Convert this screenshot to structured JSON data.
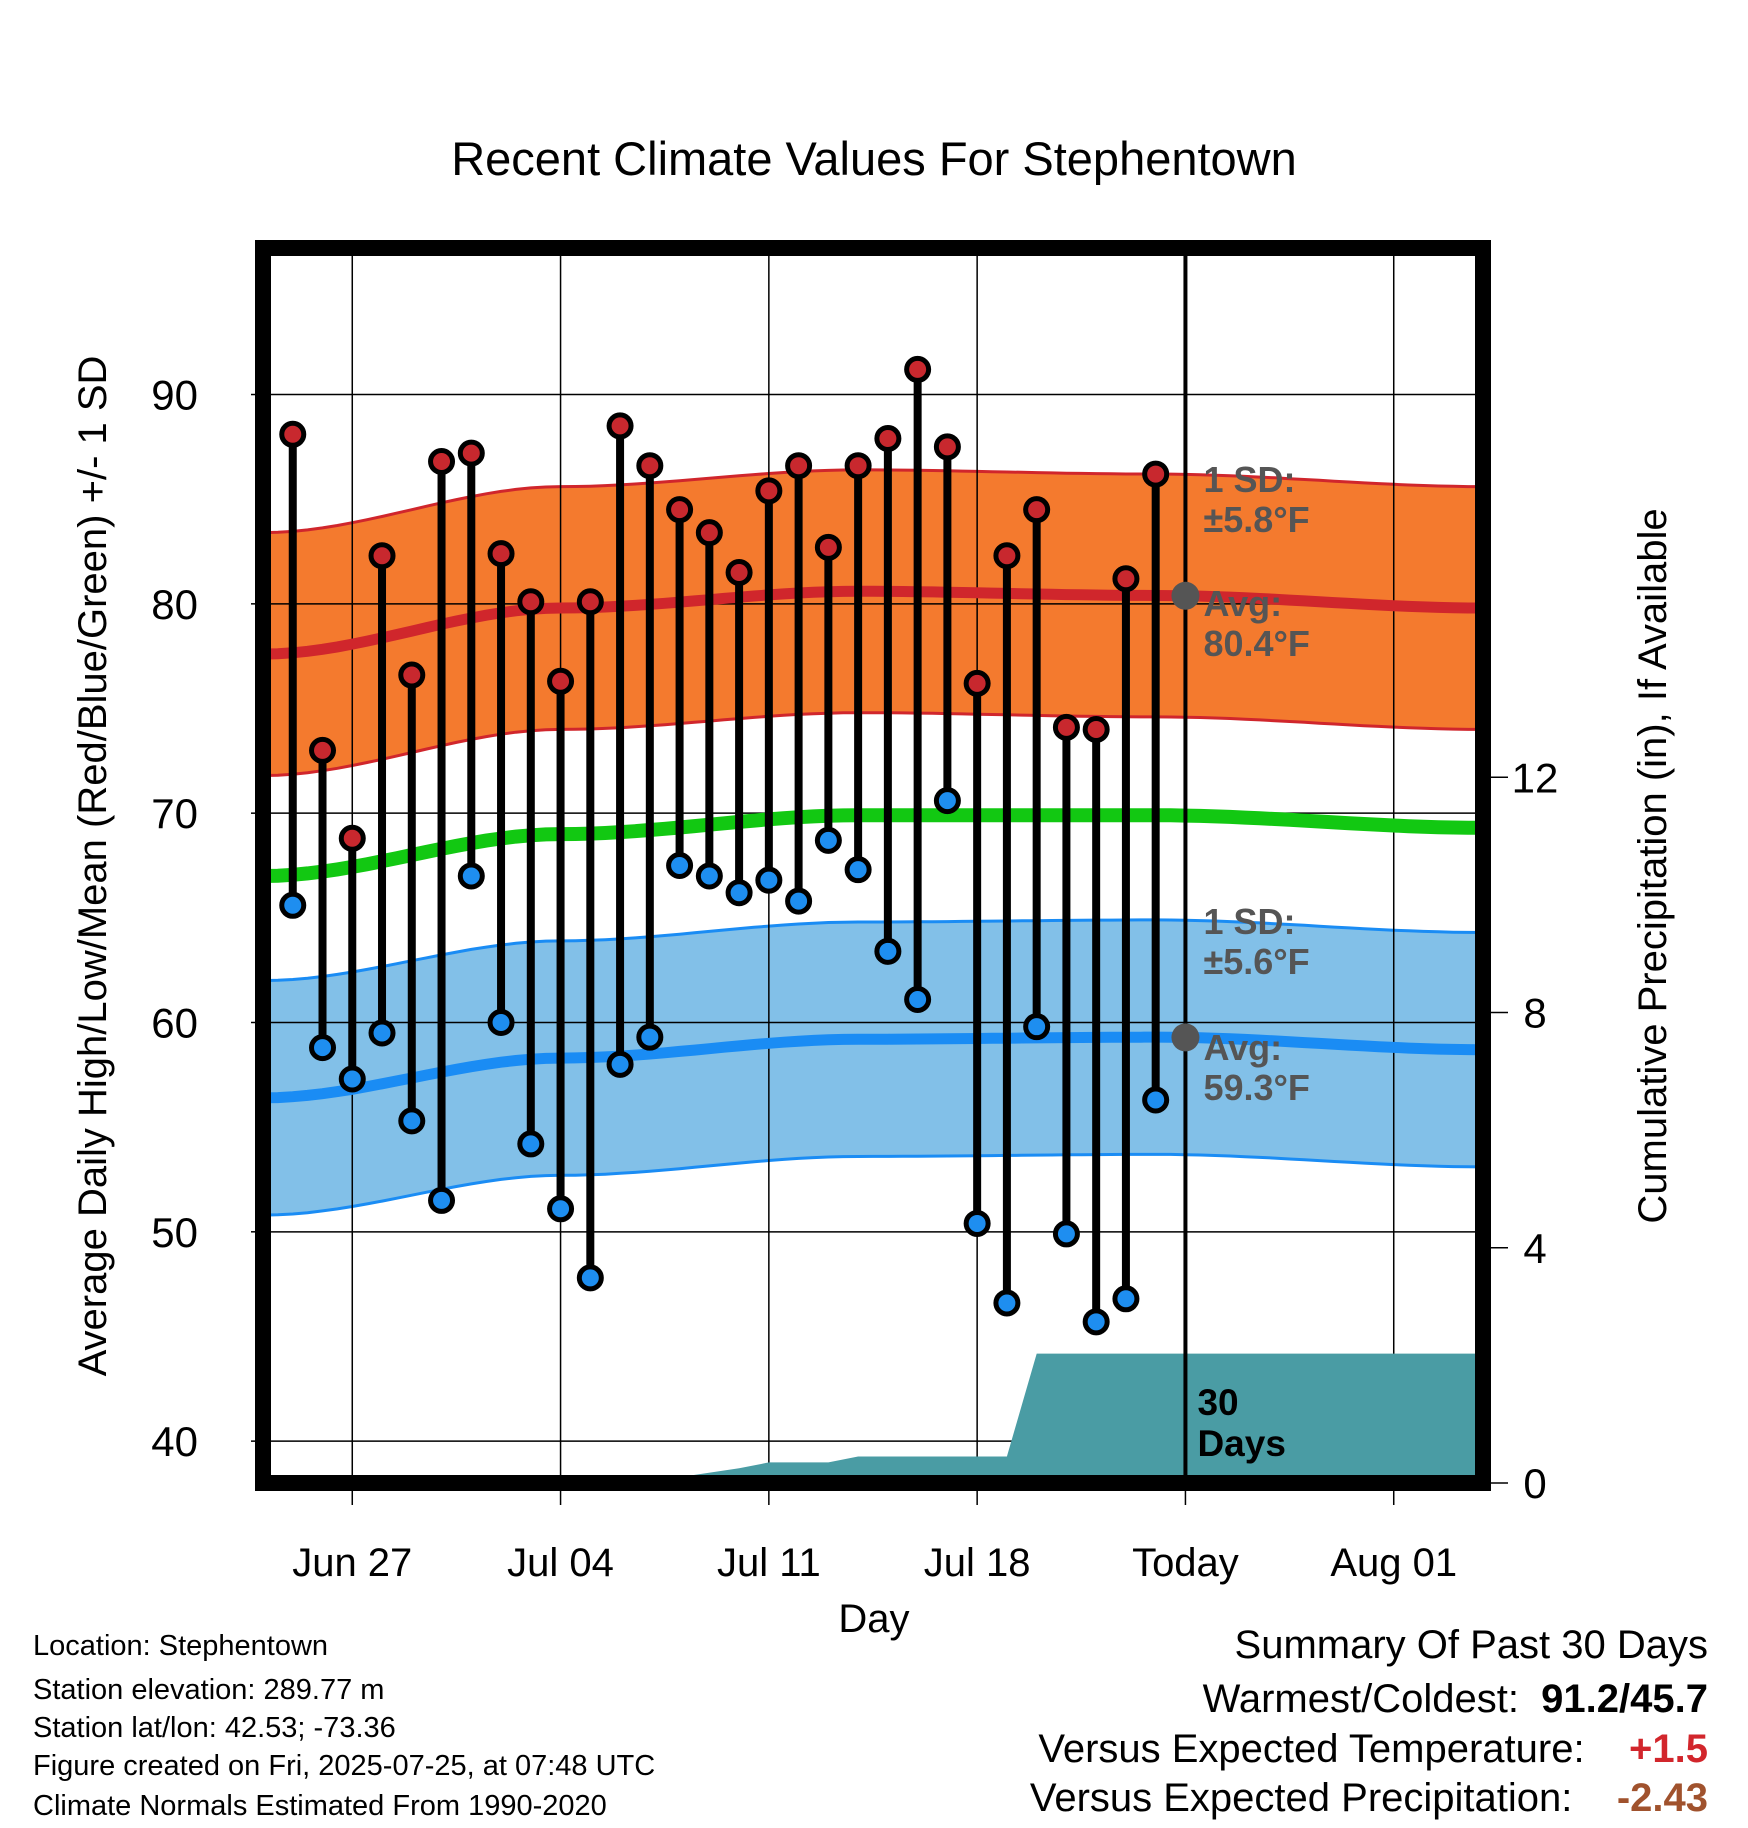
{
  "chart_data": {
    "type": "scatter",
    "title": "Recent Climate Values For Stephentown",
    "xlabel": "Day",
    "ylabel": "Average Daily High/Low/Mean (Red/Blue/Green) +/- 1 SD",
    "y2label": "Cumulative Precipitation (in), If Available",
    "ylim": [
      38,
      97
    ],
    "y2lim": [
      0,
      21
    ],
    "yticks": [
      40,
      50,
      60,
      70,
      80,
      90
    ],
    "y2ticks": [
      0,
      4,
      8,
      12
    ],
    "xticks": [
      "Jun 27",
      "Jul 04",
      "Jul 11",
      "Jul 18",
      "Today",
      "Aug 01"
    ],
    "x_range_days": [
      "Jun 24",
      "Aug 04"
    ],
    "today": "Jul 25",
    "grid": true,
    "colors": {
      "high_point": "#c8282e",
      "low_point": "#1e8ef0",
      "high_band": "#f47a2e",
      "high_avg": "#d0262c",
      "mean_line": "#12c812",
      "low_band": "#82c0e8",
      "low_avg": "#1a8cf4",
      "precip": "#4a9ca4",
      "sd_text": "#555555",
      "temp_anomaly": "#d2262c",
      "precip_anomaly": "#a0522d"
    },
    "observations": {
      "dates": [
        "Jun 25",
        "Jun 26",
        "Jun 27",
        "Jun 28",
        "Jun 29",
        "Jun 30",
        "Jul 01",
        "Jul 02",
        "Jul 03",
        "Jul 04",
        "Jul 05",
        "Jul 06",
        "Jul 07",
        "Jul 08",
        "Jul 09",
        "Jul 10",
        "Jul 11",
        "Jul 12",
        "Jul 13",
        "Jul 14",
        "Jul 15",
        "Jul 16",
        "Jul 17",
        "Jul 18",
        "Jul 19",
        "Jul 20",
        "Jul 21",
        "Jul 22",
        "Jul 23",
        "Jul 24"
      ],
      "high": [
        88.1,
        73.0,
        68.8,
        82.3,
        76.6,
        86.8,
        87.2,
        82.4,
        80.1,
        76.3,
        80.1,
        88.5,
        86.6,
        84.5,
        83.4,
        81.5,
        85.4,
        86.6,
        82.7,
        86.6,
        87.9,
        91.2,
        87.5,
        76.2,
        82.3,
        84.5,
        74.1,
        74.0,
        81.2,
        86.2
      ],
      "low": [
        65.6,
        58.8,
        57.3,
        59.5,
        55.3,
        51.5,
        67.0,
        60.0,
        54.2,
        51.1,
        47.8,
        58.0,
        59.3,
        67.5,
        67.0,
        66.2,
        66.8,
        65.8,
        68.7,
        67.3,
        63.4,
        61.1,
        70.6,
        50.4,
        46.6,
        59.8,
        49.9,
        45.7,
        46.8,
        56.3
      ]
    },
    "normals": {
      "days": [
        "Jun 24",
        "Jul 04",
        "Jul 14",
        "Jul 24",
        "Aug 04"
      ],
      "high_avg": [
        77.6,
        79.8,
        80.6,
        80.4,
        79.8
      ],
      "high_sd": 5.8,
      "low_avg": [
        56.4,
        58.3,
        59.2,
        59.3,
        58.7
      ],
      "low_sd": 5.6,
      "mean_avg": [
        67.0,
        69.0,
        69.9,
        69.9,
        69.3
      ]
    },
    "precipitation": {
      "dates": [
        "Jun 24",
        "Jul 06",
        "Jul 07",
        "Jul 08",
        "Jul 10",
        "Jul 11",
        "Jul 13",
        "Jul 14",
        "Jul 19",
        "Jul 20",
        "Aug 04"
      ],
      "cumulative": [
        0,
        0,
        0.05,
        0.1,
        0.25,
        0.35,
        0.35,
        0.45,
        0.45,
        2.2,
        2.2
      ]
    },
    "annotations": {
      "high_sd_label": "1 SD:",
      "high_sd_value": "±5.8°F",
      "high_avg_label": "Avg:",
      "high_avg_value": "80.4°F",
      "low_sd_label": "1 SD:",
      "low_sd_value": "±5.6°F",
      "low_avg_label": "Avg:",
      "low_avg_value": "59.3°F",
      "precip_days_1": "30",
      "precip_days_2": "Days"
    }
  },
  "info": {
    "location": "Location: Stephentown",
    "elevation": "Station elevation: 289.77 m",
    "latlon": "Station lat/lon: 42.53; -73.36",
    "created": "Figure created on Fri, 2025-07-25, at 07:48 UTC",
    "normals_note": "Climate Normals Estimated From 1990-2020"
  },
  "summary": {
    "title": "Summary Of Past 30 Days",
    "warm_cold_label": "Warmest/Coldest:",
    "warm_cold_value": "91.2/45.7",
    "temp_label": "Versus Expected Temperature:",
    "temp_value": "+1.5",
    "precip_label": "Versus Expected Precipitation:",
    "precip_value": "-2.43"
  }
}
